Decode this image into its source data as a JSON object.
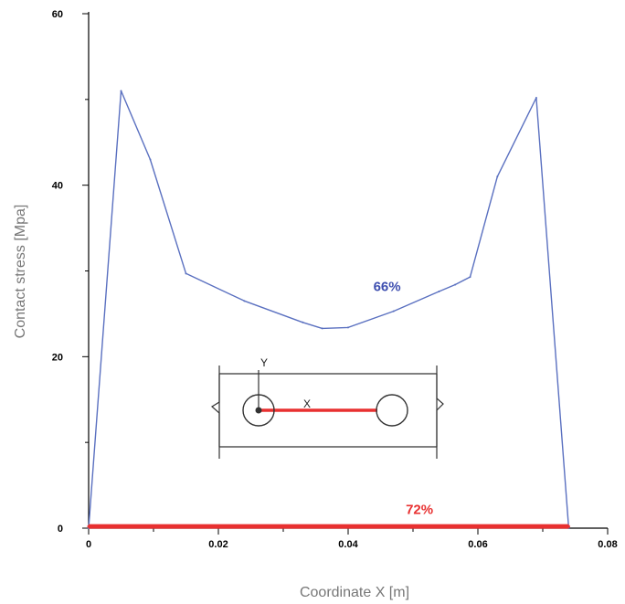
{
  "chart_data": {
    "type": "line",
    "title": "",
    "xlabel": "Coordinate X [m]",
    "ylabel": "Contact stress [Mpa]",
    "xlim": [
      0,
      0.08
    ],
    "ylim": [
      0,
      60
    ],
    "x_ticks": [
      "0",
      "0.02",
      "0.04",
      "0.06",
      "0.08"
    ],
    "y_ticks": [
      "0",
      "20",
      "40",
      "60"
    ],
    "grid": false,
    "series": [
      {
        "name": "66%",
        "color": "#5a70c0",
        "x": [
          0.0,
          0.005,
          0.0095,
          0.015,
          0.024,
          0.033,
          0.036,
          0.04,
          0.047,
          0.054,
          0.0565,
          0.0588,
          0.063,
          0.069,
          0.074
        ],
        "y": [
          0,
          51.0,
          43.0,
          29.7,
          26.5,
          24.0,
          23.3,
          23.4,
          25.3,
          27.6,
          28.4,
          29.3,
          41.0,
          50.2,
          0
        ]
      },
      {
        "name": "72%",
        "color": "#e83030",
        "x": [
          0.0,
          0.074
        ],
        "y": [
          0.2,
          0.2
        ]
      }
    ],
    "annotations": [
      {
        "text": "66%",
        "x": 0.046,
        "y": 28.2,
        "color": "#3e4fb0"
      },
      {
        "text": "72%",
        "x": 0.051,
        "y": 2.2,
        "color": "#e83030"
      }
    ],
    "inset": {
      "y_axis_label": "Y",
      "x_axis_label": "X"
    }
  }
}
